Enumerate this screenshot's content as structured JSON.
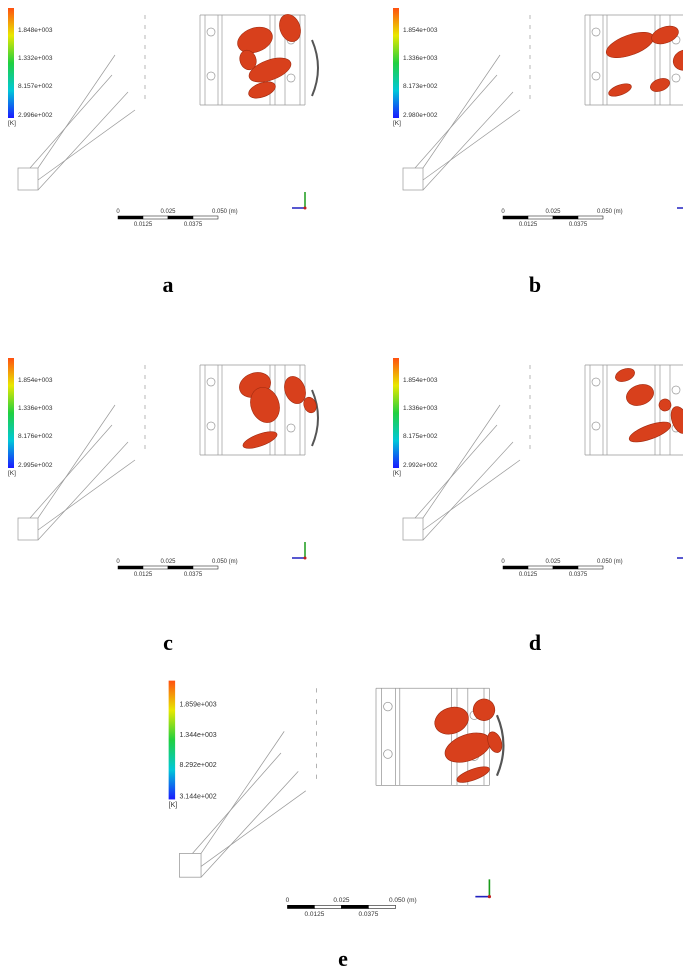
{
  "panels": [
    {
      "label": "a",
      "legend": [
        "1.848e+003",
        "1.332e+003",
        "8.157e+002",
        "2.996e+002"
      ],
      "unit": "[K]",
      "scale": [
        "0",
        "0.025",
        "0.050 (m)",
        "0.0125",
        "0.0375"
      ]
    },
    {
      "label": "b",
      "legend": [
        "1.854e+003",
        "1.336e+003",
        "8.173e+002",
        "2.980e+002"
      ],
      "unit": "[K]",
      "scale": [
        "0",
        "0.025",
        "0.050 (m)",
        "0.0125",
        "0.0375"
      ]
    },
    {
      "label": "c",
      "legend": [
        "1.854e+003",
        "1.336e+003",
        "8.176e+002",
        "2.995e+002"
      ],
      "unit": "[K]",
      "scale": [
        "0",
        "0.025",
        "0.050 (m)",
        "0.0125",
        "0.0375"
      ]
    },
    {
      "label": "d",
      "legend": [
        "1.854e+003",
        "1.336e+003",
        "8.175e+002",
        "2.992e+002"
      ],
      "unit": "[K]",
      "scale": [
        "0",
        "0.025",
        "0.050 (m)",
        "0.0125",
        "0.0375"
      ]
    },
    {
      "label": "e",
      "legend": [
        "1.859e+003",
        "1.344e+003",
        "8.292e+002",
        "3.144e+002"
      ],
      "unit": "[K]",
      "scale": [
        "0",
        "0.025",
        "0.050 (m)",
        "0.0125",
        "0.0375"
      ]
    }
  ]
}
